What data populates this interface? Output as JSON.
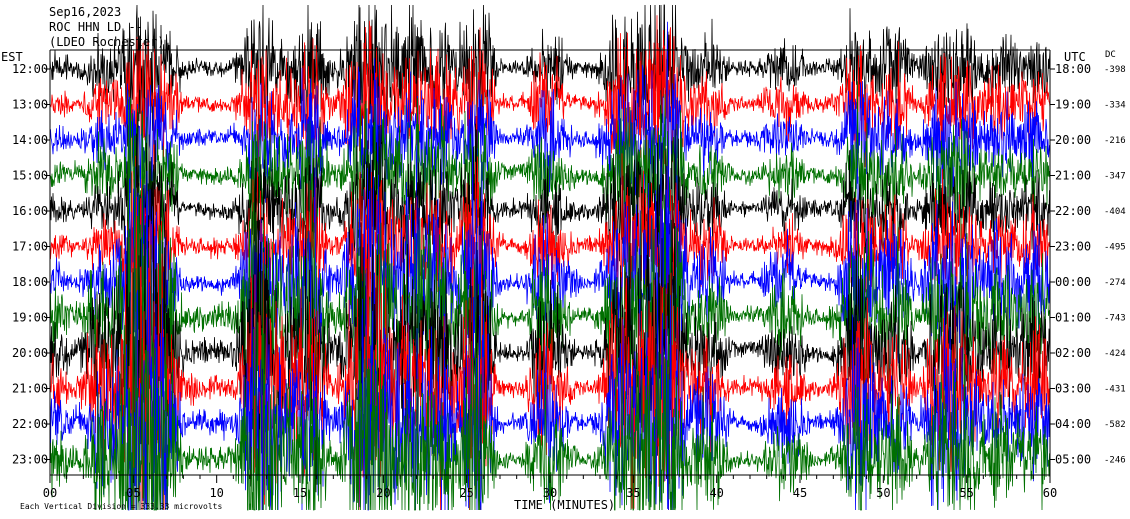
{
  "chart_data": {
    "type": "line",
    "title_lines": [
      "Sep16,2023",
      "ROC HHN LD --",
      "(LDEO Rochester)"
    ],
    "left_label": "EST",
    "right_label": "UTC",
    "dc_label": "DC",
    "xlabel": "TIME (MINUTES)",
    "footnote": "Each Vertical Division = 333.33 microvolts",
    "x_ticks": [
      "00",
      "05",
      "10",
      "15",
      "20",
      "25",
      "30",
      "35",
      "40",
      "45",
      "50",
      "55",
      "60"
    ],
    "xlim": [
      0,
      60
    ],
    "colors": [
      "#000000",
      "#ff0000",
      "#0000ff",
      "#007000"
    ],
    "rows": [
      {
        "est": "12:00",
        "utc": "18:00",
        "dc": "-398"
      },
      {
        "est": "13:00",
        "utc": "19:00",
        "dc": "-334"
      },
      {
        "est": "14:00",
        "utc": "20:00",
        "dc": "-216"
      },
      {
        "est": "15:00",
        "utc": "21:00",
        "dc": "-347"
      },
      {
        "est": "16:00",
        "utc": "22:00",
        "dc": "-404"
      },
      {
        "est": "17:00",
        "utc": "23:00",
        "dc": "-495"
      },
      {
        "est": "18:00",
        "utc": "00:00",
        "dc": "-274"
      },
      {
        "est": "19:00",
        "utc": "01:00",
        "dc": "-743"
      },
      {
        "est": "20:00",
        "utc": "02:00",
        "dc": "-424"
      },
      {
        "est": "21:00",
        "utc": "03:00",
        "dc": "-431"
      },
      {
        "est": "22:00",
        "utc": "04:00",
        "dc": "-582"
      },
      {
        "est": "23:00",
        "utc": "05:00",
        "dc": "-246"
      }
    ]
  }
}
